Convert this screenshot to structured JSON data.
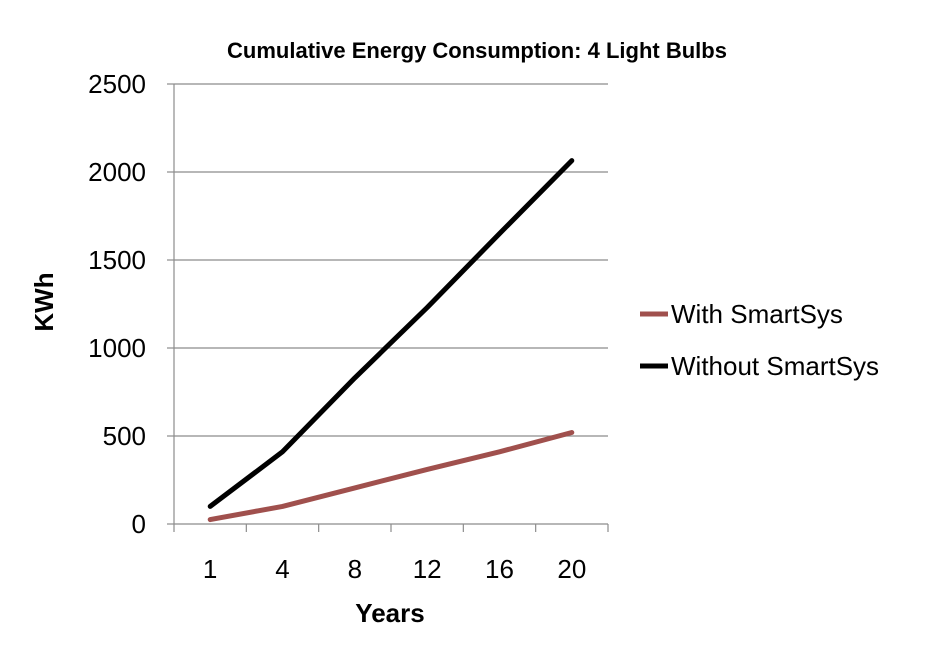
{
  "chart_data": {
    "type": "line",
    "title": "Cumulative Energy Consumption: 4 Light Bulbs",
    "xlabel": "Years",
    "ylabel": "KWh",
    "categories": [
      "1",
      "4",
      "8",
      "12",
      "16",
      "20"
    ],
    "ylim": [
      0,
      2500
    ],
    "yticks": [
      "0",
      "500",
      "1000",
      "1500",
      "2000",
      "2500"
    ],
    "grid": true,
    "legend_position": "right",
    "series": [
      {
        "name": "With SmartSys",
        "color": "#a0504d",
        "values": [
          25,
          100,
          205,
          310,
          410,
          520
        ]
      },
      {
        "name": "Without SmartSys",
        "color": "#000000",
        "values": [
          100,
          410,
          830,
          1230,
          1650,
          2065
        ]
      }
    ]
  }
}
